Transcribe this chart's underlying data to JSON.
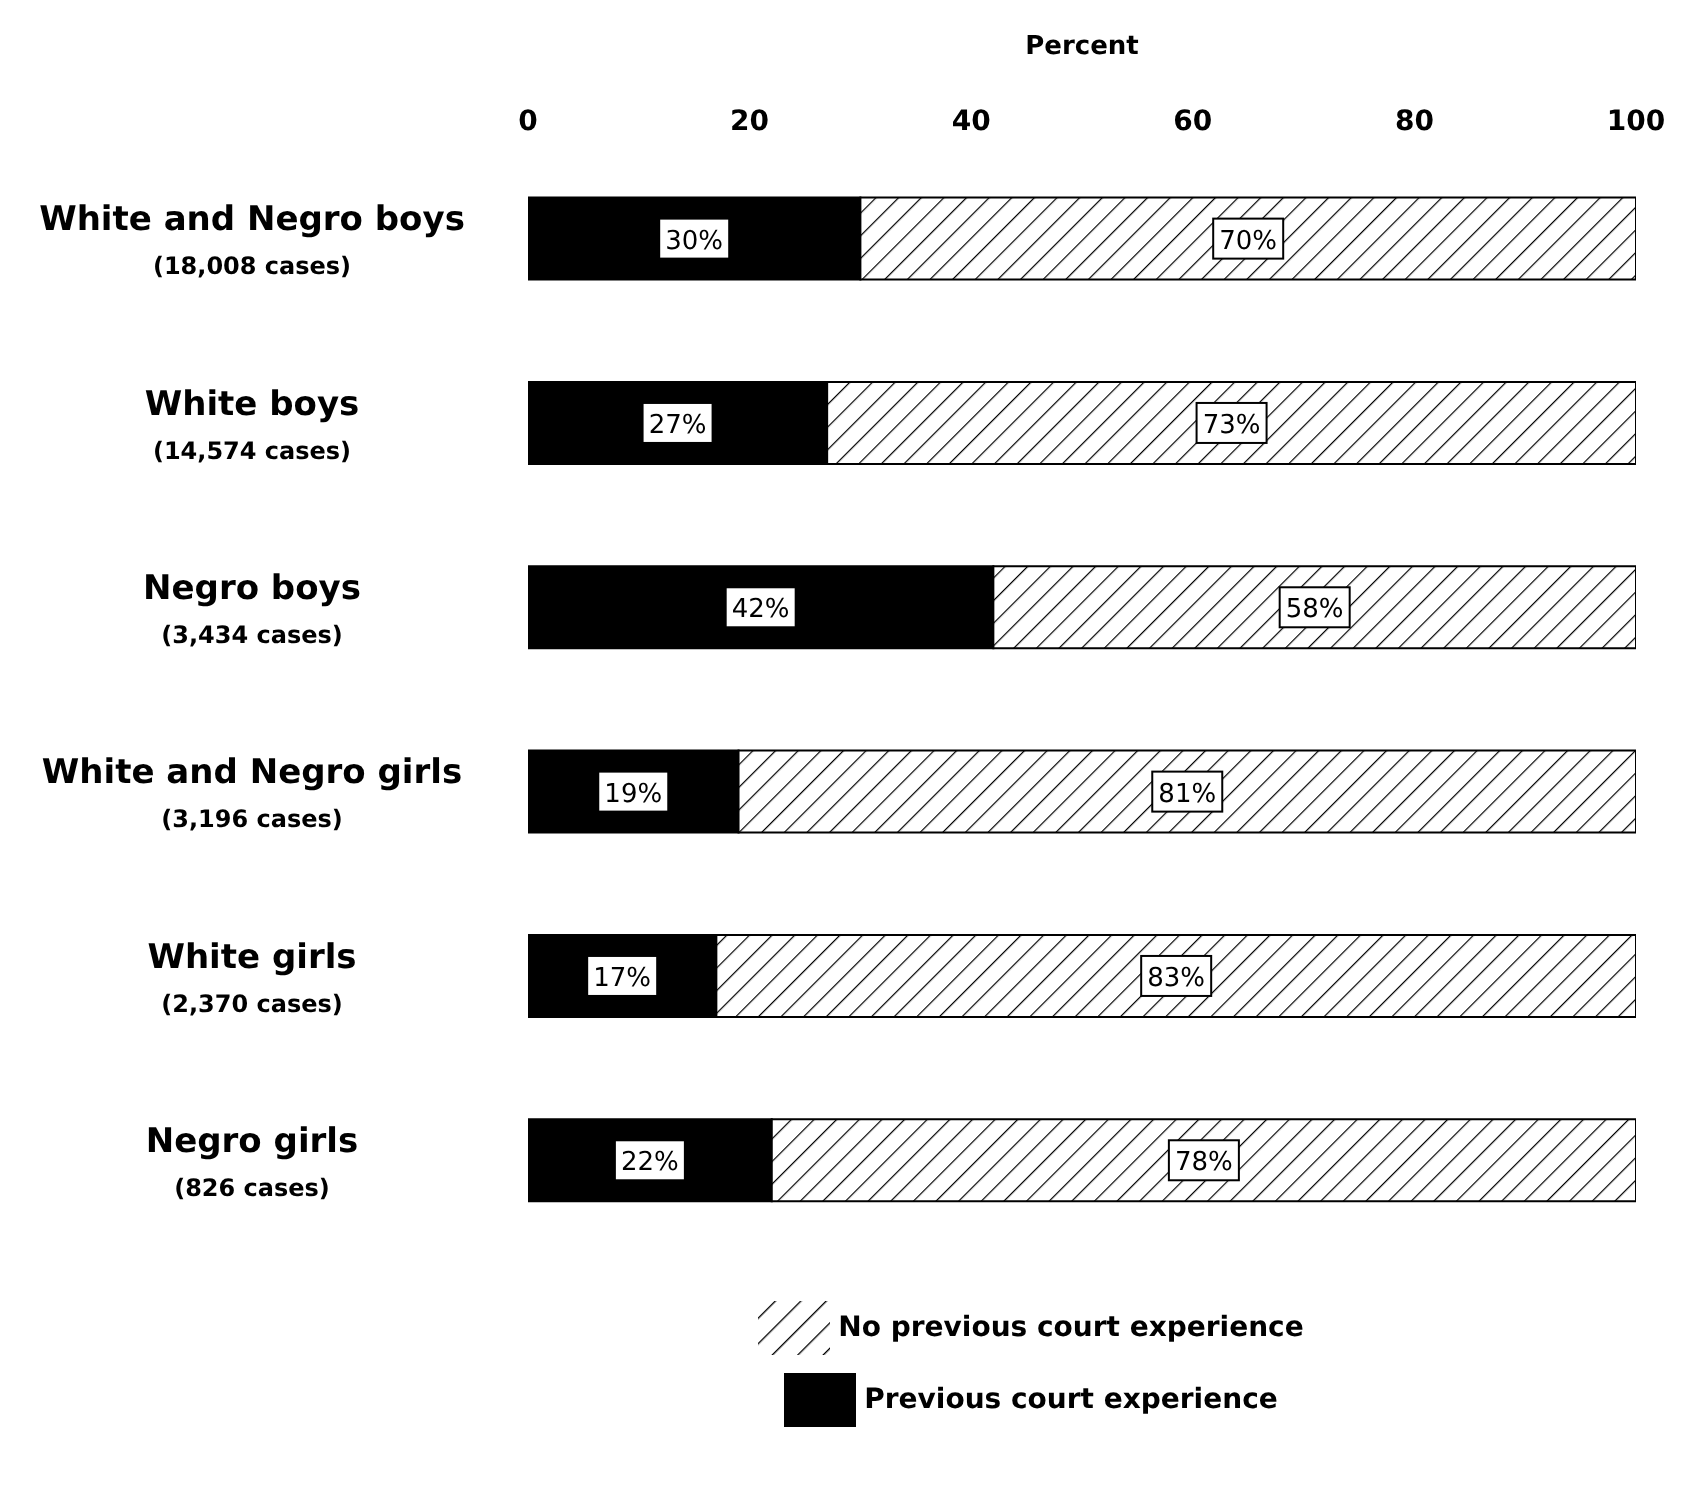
{
  "chart_data": {
    "type": "bar",
    "orientation": "horizontal",
    "stacked": true,
    "xlabel": "Percent",
    "xlim": [
      0,
      100
    ],
    "xticks": [
      0,
      20,
      40,
      60,
      80,
      100
    ],
    "categories": [
      "White and Negro boys\n(18,008 cases)",
      "White boys\n(14,574 cases)",
      "Negro boys\n(3,434 cases)",
      "White and Negro girls\n(3,196 cases)",
      "White girls\n(2,370 cases)",
      "Negro girls\n(826 cases)"
    ],
    "series": [
      {
        "name": "Previous court experience",
        "color": "#000000",
        "values": [
          30,
          27,
          42,
          19,
          17,
          22
        ],
        "value_labels": [
          "30%",
          "27%",
          "42%",
          "19%",
          "17%",
          "22%"
        ]
      },
      {
        "name": "No previous court experience",
        "color": "#000000",
        "values": [
          70,
          73,
          58,
          81,
          83,
          78
        ],
        "value_labels": [
          "70%",
          "73%",
          "58%",
          "81%",
          "83%",
          "78%"
        ]
      }
    ],
    "legend": "bottom",
    "grid": false
  }
}
